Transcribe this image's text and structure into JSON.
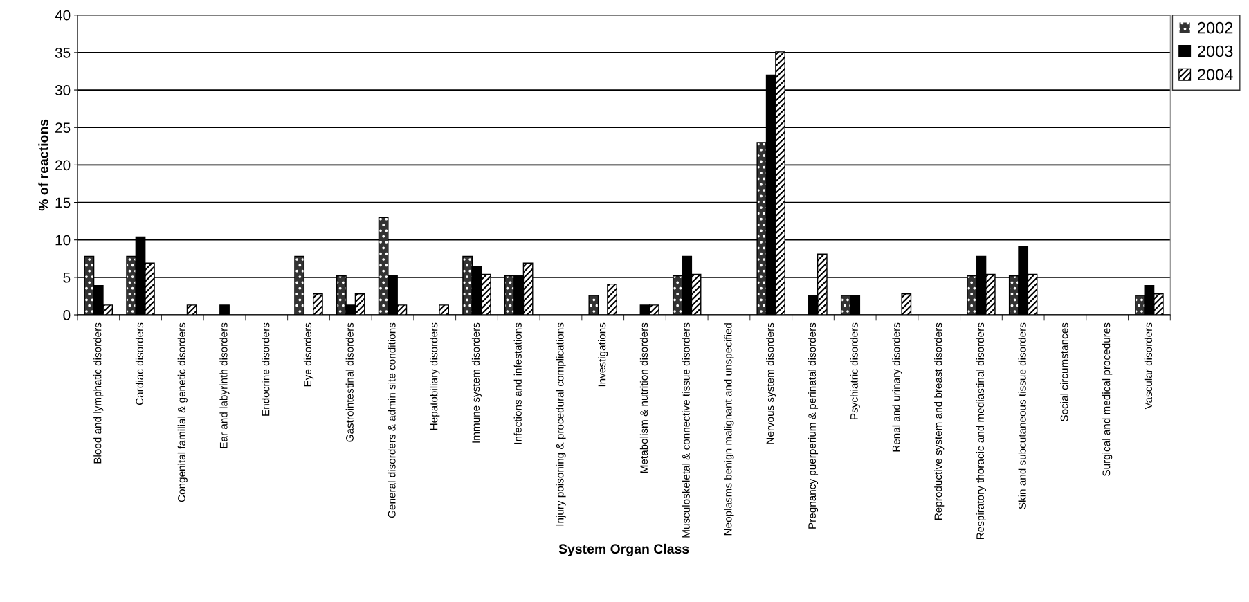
{
  "chart_data": {
    "type": "bar",
    "xlabel": "System Organ Class",
    "ylabel": "% of reactions",
    "categories": [
      "Blood and lymphatic disorders",
      "Cardiac disorders",
      "Congenital familial & genetic disorders",
      "Ear and labyrinth disorders",
      "Endocrine disorders",
      "Eye disorders",
      "Gastrointestinal disorders",
      "General disorders & admin site conditions",
      "Hepatobiliary disorders",
      "Immune system disorders",
      "Infections and infestations",
      "Injury poisoning & procedural complications",
      "Investigations",
      "Metabolism & nutrition disorders",
      "Musculoskeletal & connective tissue disorders",
      "Neoplasms benign malignant and unspecified",
      "Nervous system disorders",
      "Pregnancy puerperium & perinatal disorders",
      "Psychiatric disorders",
      "Renal and urinary disorders",
      "Reproductive system and breast disorders",
      "Respiratory thoracic and mediastinal disorders",
      "Skin and subcutaneous tissue disorders",
      "Social circumstances",
      "Surgical and medical procedures",
      "Vascular disorders"
    ],
    "series": [
      {
        "name": "2002",
        "color": "#333333",
        "values": [
          7.8,
          7.8,
          0,
          0,
          0,
          7.8,
          5.2,
          13,
          0,
          7.8,
          5.2,
          0,
          2.6,
          0,
          5.2,
          0,
          23,
          0,
          2.6,
          0,
          0,
          5.2,
          5.2,
          0,
          0,
          2.6
        ]
      },
      {
        "name": "2003",
        "color": "#000000",
        "values": [
          3.9,
          10.4,
          0,
          1.3,
          0,
          0,
          1.3,
          5.2,
          0,
          6.5,
          5.2,
          0,
          0,
          1.3,
          7.8,
          0,
          32,
          2.6,
          2.6,
          0,
          0,
          7.8,
          9.1,
          0,
          0,
          3.9
        ]
      },
      {
        "name": "2004",
        "color": "#ffffff",
        "values": [
          1.3,
          6.9,
          1.3,
          0,
          0,
          2.8,
          2.8,
          1.3,
          1.3,
          5.4,
          6.9,
          0,
          4.1,
          1.3,
          5.4,
          0,
          35.1,
          8.1,
          0,
          2.8,
          0,
          5.4,
          5.4,
          0,
          0,
          2.8
        ]
      }
    ],
    "ylim": [
      0,
      40
    ],
    "yticks": [
      0,
      5,
      10,
      15,
      20,
      25,
      30,
      35,
      40
    ],
    "grid": "y",
    "legend": "top right"
  }
}
